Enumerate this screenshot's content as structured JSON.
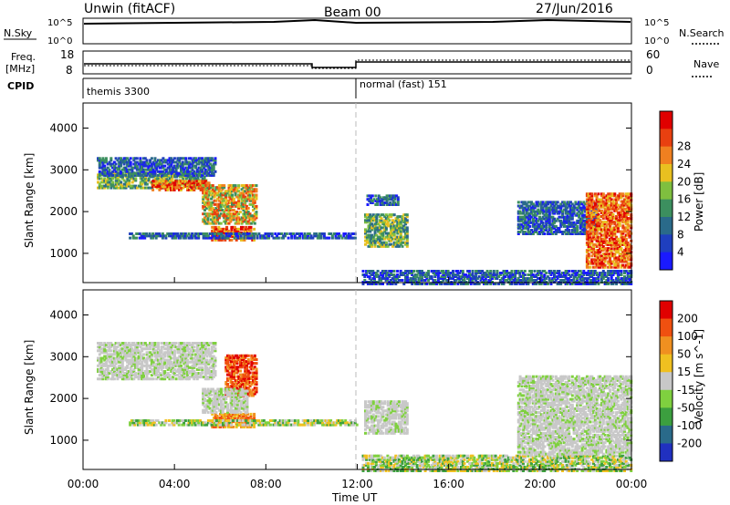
{
  "header": {
    "left": "Unwin (fitACF)",
    "center": "Beam 00",
    "right": "27/Jun/2016"
  },
  "strips": {
    "nsky_label": "N.Sky",
    "nsearch_label": "N.Search",
    "freq_label": "Freq.",
    "freq_unit": "[MHz]",
    "nave_label": "Nave",
    "cpid_label": "CPID",
    "nsky_ticks": [
      "10^5",
      "10^0"
    ],
    "nsearch_ticks": [
      "10^5",
      "10^0"
    ],
    "freq_ticks": [
      "18",
      "8"
    ],
    "nave_ticks": [
      "60",
      "0"
    ],
    "cpid_segments": [
      {
        "start_hour": 0,
        "end_hour": 12,
        "label": "themis 3300"
      },
      {
        "start_hour": 12,
        "end_hour": 24,
        "label": "normal (fast) 151"
      }
    ],
    "freq_mhz": [
      {
        "start_hour": 0,
        "end_hour": 10,
        "value": 11
      },
      {
        "start_hour": 10,
        "end_hour": 12,
        "value": 9.5
      },
      {
        "start_hour": 12,
        "end_hour": 24,
        "value": 12
      }
    ]
  },
  "chart_data": [
    {
      "type": "heatmap",
      "name": "power",
      "ylabel": "Slant Range [km]",
      "yticks": [
        "1000",
        "2000",
        "3000",
        "4000"
      ],
      "ylim": [
        300,
        4600
      ],
      "xlim_hours": [
        0,
        24
      ],
      "colorbar_label": "Power [dB]",
      "colorbar_ticks": [
        "4",
        "8",
        "12",
        "16",
        "20",
        "24",
        "28"
      ],
      "colorbar_colors": [
        "#1a1aff",
        "#1f3fbf",
        "#2a6a8a",
        "#3c8f5f",
        "#7fbf3f",
        "#e8c020",
        "#f08020",
        "#e84010",
        "#e00000"
      ],
      "regions": [
        {
          "t0": 0.6,
          "t1": 5.4,
          "r0": 2600,
          "r1": 3000,
          "level": "mid"
        },
        {
          "t0": 0.6,
          "t1": 5.8,
          "r0": 2900,
          "r1": 3350,
          "level": "low"
        },
        {
          "t0": 3.0,
          "t1": 5.6,
          "r0": 2550,
          "r1": 2800,
          "level": "high"
        },
        {
          "t0": 5.6,
          "t1": 7.5,
          "r0": 1350,
          "r1": 1700,
          "level": "high"
        },
        {
          "t0": 5.2,
          "t1": 7.6,
          "r0": 1750,
          "r1": 2700,
          "level": "mix"
        },
        {
          "t0": 2.0,
          "t1": 12.0,
          "r0": 1400,
          "r1": 1550,
          "level": "low"
        },
        {
          "t0": 12.2,
          "t1": 24.0,
          "r0": 300,
          "r1": 650,
          "level": "low"
        },
        {
          "t0": 12.3,
          "t1": 14.2,
          "r0": 1200,
          "r1": 2000,
          "level": "mid"
        },
        {
          "t0": 12.4,
          "t1": 13.8,
          "r0": 2200,
          "r1": 2450,
          "level": "low"
        },
        {
          "t0": 19.0,
          "t1": 22.5,
          "r0": 1500,
          "r1": 2300,
          "level": "low"
        },
        {
          "t0": 22.0,
          "t1": 24.0,
          "r0": 700,
          "r1": 2500,
          "level": "high"
        }
      ]
    },
    {
      "type": "heatmap",
      "name": "velocity",
      "ylabel": "Slant Range [km]",
      "yticks": [
        "1000",
        "2000",
        "3000",
        "4000"
      ],
      "ylim": [
        300,
        4600
      ],
      "xlabel": "Time UT",
      "xticks": [
        "00:00",
        "04:00",
        "08:00",
        "12:00",
        "16:00",
        "20:00",
        "00:00"
      ],
      "xlim_hours": [
        0,
        24
      ],
      "colorbar_label": "Velocity [m s^-1]",
      "colorbar_ticks": [
        "200",
        "100",
        "50",
        "15",
        "-15",
        "-50",
        "-100",
        "-200"
      ],
      "colorbar_colors": [
        "#2030c0",
        "#2a6a8a",
        "#3c9f3f",
        "#7fd03f",
        "#c8c8c8",
        "#f0c020",
        "#f09020",
        "#f05010",
        "#e00000"
      ],
      "regions": [
        {
          "t0": 0.6,
          "t1": 5.8,
          "r0": 2500,
          "r1": 3400,
          "level": "gray"
        },
        {
          "t0": 5.6,
          "t1": 7.5,
          "r0": 1350,
          "r1": 1700,
          "level": "orange"
        },
        {
          "t0": 6.2,
          "t1": 7.6,
          "r0": 2100,
          "r1": 3100,
          "level": "red"
        },
        {
          "t0": 5.2,
          "t1": 7.2,
          "r0": 1700,
          "r1": 2300,
          "level": "gray"
        },
        {
          "t0": 2.0,
          "t1": 12.0,
          "r0": 1400,
          "r1": 1550,
          "level": "green"
        },
        {
          "t0": 12.2,
          "t1": 24.0,
          "r0": 300,
          "r1": 700,
          "level": "green"
        },
        {
          "t0": 12.3,
          "t1": 14.2,
          "r0": 1200,
          "r1": 2000,
          "level": "gray"
        },
        {
          "t0": 19.0,
          "t1": 24.0,
          "r0": 700,
          "r1": 2600,
          "level": "gray"
        }
      ]
    }
  ]
}
